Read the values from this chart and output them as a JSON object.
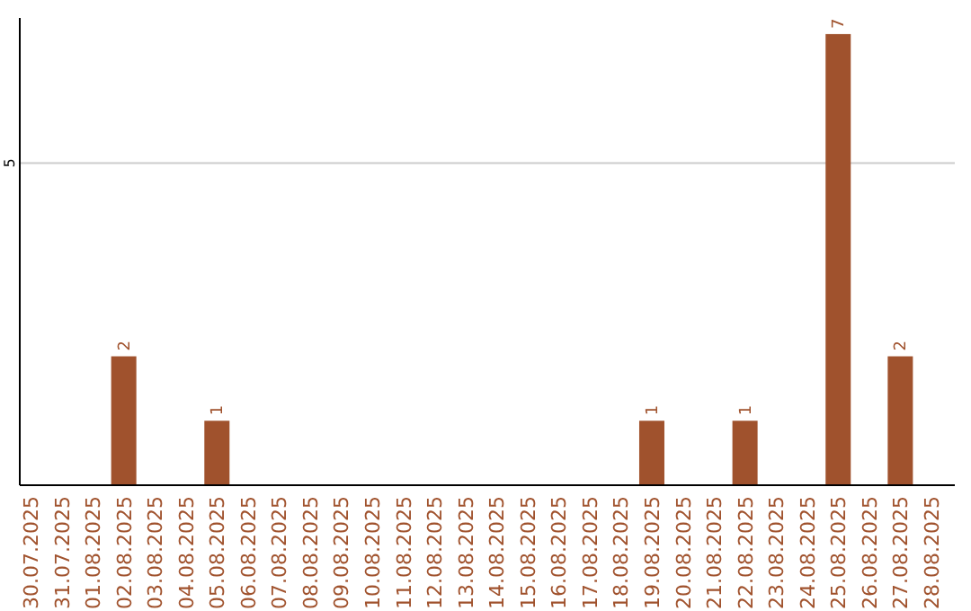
{
  "chart_data": {
    "type": "bar",
    "categories": [
      "30.07.2025",
      "31.07.2025",
      "01.08.2025",
      "02.08.2025",
      "03.08.2025",
      "04.08.2025",
      "05.08.2025",
      "06.08.2025",
      "07.08.2025",
      "08.08.2025",
      "09.08.2025",
      "10.08.2025",
      "11.08.2025",
      "12.08.2025",
      "13.08.2025",
      "14.08.2025",
      "15.08.2025",
      "16.08.2025",
      "17.08.2025",
      "18.08.2025",
      "19.08.2025",
      "20.08.2025",
      "21.08.2025",
      "22.08.2025",
      "23.08.2025",
      "24.08.2025",
      "25.08.2025",
      "26.08.2025",
      "27.08.2025",
      "28.08.2025"
    ],
    "values": [
      0,
      0,
      0,
      2,
      0,
      0,
      1,
      0,
      0,
      0,
      0,
      0,
      0,
      0,
      0,
      0,
      0,
      0,
      0,
      0,
      1,
      0,
      0,
      1,
      0,
      0,
      7,
      0,
      2,
      0
    ],
    "value_labels": [
      null,
      null,
      null,
      "2",
      null,
      null,
      "1",
      null,
      null,
      null,
      null,
      null,
      null,
      null,
      null,
      null,
      null,
      null,
      null,
      null,
      "1",
      null,
      null,
      "1",
      null,
      null,
      "7",
      null,
      "2",
      null
    ],
    "color": "#a0522d",
    "ylim": [
      0,
      7.25
    ],
    "yticks": [
      5
    ],
    "grid": "y"
  }
}
